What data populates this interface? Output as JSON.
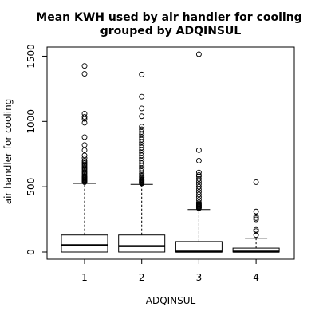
{
  "chart_data": {
    "type": "boxplot",
    "title_lines": [
      "Mean KWH used by air handler for cooling",
      "grouped by ADQINSUL"
    ],
    "xlabel": "ADQINSUL",
    "ylabel": "air handler for cooling",
    "categories": [
      "1",
      "2",
      "3",
      "4"
    ],
    "ylim": [
      -55,
      1570
    ],
    "yticks": [
      0,
      500,
      1000,
      1500
    ],
    "yticks_rotated": true,
    "grid": false,
    "boxes": [
      {
        "category": "1",
        "whisker_low": 0,
        "q1": 0,
        "median": 52,
        "q3": 130,
        "whisker_high": 525,
        "outliers": [
          535,
          540,
          545,
          550,
          555,
          560,
          565,
          570,
          575,
          580,
          590,
          600,
          610,
          620,
          630,
          640,
          650,
          660,
          670,
          680,
          690,
          700,
          720,
          740,
          780,
          820,
          880,
          990,
          1020,
          1035,
          1060,
          1365,
          1425
        ]
      },
      {
        "category": "2",
        "whisker_low": 0,
        "q1": 0,
        "median": 45,
        "q3": 130,
        "whisker_high": 518,
        "outliers": [
          525,
          530,
          535,
          540,
          545,
          550,
          555,
          560,
          570,
          580,
          590,
          600,
          620,
          640,
          660,
          680,
          700,
          720,
          740,
          760,
          780,
          800,
          820,
          840,
          860,
          880,
          900,
          920,
          940,
          960,
          1040,
          1100,
          1190,
          1360
        ]
      },
      {
        "category": "3",
        "whisker_low": 0,
        "q1": 0,
        "median": 3,
        "q3": 80,
        "whisker_high": 325,
        "outliers": [
          335,
          340,
          345,
          350,
          355,
          360,
          365,
          370,
          380,
          400,
          420,
          440,
          460,
          480,
          500,
          520,
          540,
          560,
          580,
          590,
          610,
          700,
          780,
          1515
        ]
      },
      {
        "category": "4",
        "whisker_low": 0,
        "q1": 0,
        "median": 3,
        "q3": 30,
        "whisker_high": 105,
        "outliers": [
          130,
          160,
          170,
          250,
          260,
          270,
          310,
          535
        ]
      }
    ]
  }
}
